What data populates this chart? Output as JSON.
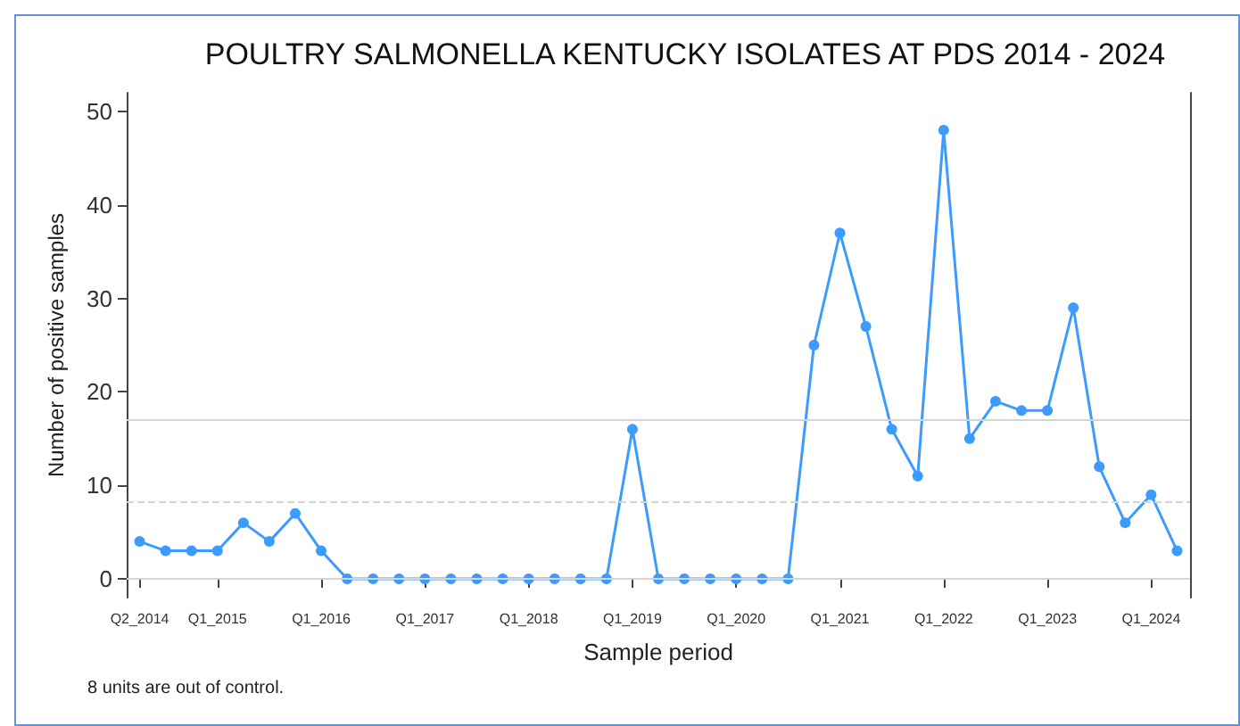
{
  "chart_data": {
    "type": "line",
    "title": "POULTRY SALMONELLA KENTUCKY ISOLATES AT PDS 2014 - 2024",
    "xlabel": "Sample period",
    "ylabel": "Number of positive samples",
    "categories": [
      "Q2_2014",
      null,
      null,
      "Q1_2015",
      null,
      null,
      null,
      "Q1_2016",
      null,
      null,
      null,
      "Q1_2017",
      null,
      null,
      null,
      "Q1_2018",
      null,
      null,
      null,
      "Q1_2019",
      null,
      null,
      null,
      "Q1_2020",
      null,
      null,
      null,
      "Q1_2021",
      null,
      null,
      null,
      "Q1_2022",
      null,
      null,
      null,
      "Q1_2023",
      null,
      null,
      null,
      "Q1_2024",
      null
    ],
    "series": [
      {
        "color": "#3b9bff",
        "values": [
          4,
          3,
          3,
          3,
          6,
          4,
          7,
          3,
          0,
          0,
          0,
          0,
          0,
          0,
          0,
          0,
          0,
          0,
          0,
          16,
          0,
          0,
          0,
          0,
          0,
          0,
          25,
          37,
          27,
          16,
          11,
          48,
          15,
          19,
          18,
          18,
          29,
          12,
          6,
          9,
          3
        ]
      }
    ],
    "ylim": [
      -2,
      52
    ],
    "yticks": [
      0,
      10,
      20,
      30,
      40,
      50
    ],
    "grid": false,
    "marker": "circle",
    "line_style": "solid",
    "ref_lines": [
      {
        "axis": "y",
        "value": 17.1,
        "color": "#d4d4d4",
        "line_style": "solid"
      },
      {
        "axis": "y",
        "value": 8.3,
        "color": "#d4d4d4",
        "line_style": "dashed"
      },
      {
        "axis": "y",
        "value": 0,
        "color": "#d4d4d4",
        "line_style": "solid"
      }
    ],
    "annotations": [
      "8 units are out of control."
    ]
  }
}
